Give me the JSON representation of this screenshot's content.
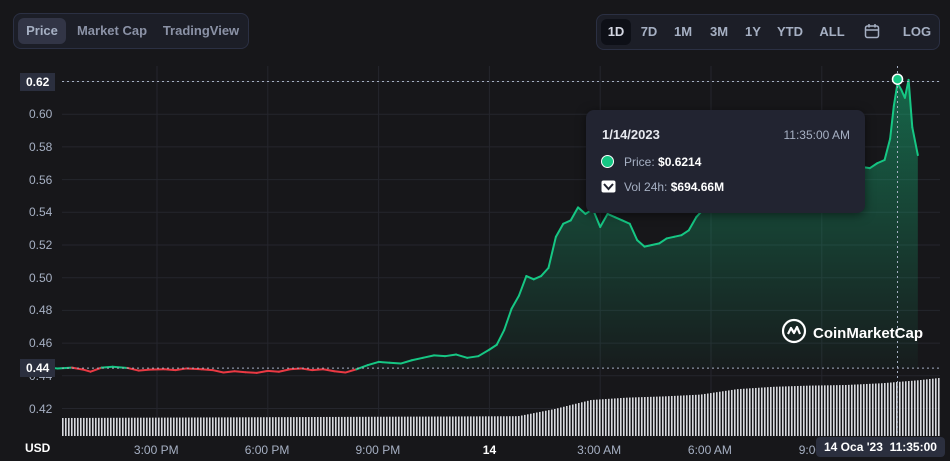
{
  "tabs": [
    {
      "label": "Price",
      "active": true
    },
    {
      "label": "Market Cap",
      "active": false
    },
    {
      "label": "TradingView",
      "active": false
    }
  ],
  "ranges": [
    {
      "label": "1D",
      "active": true
    },
    {
      "label": "7D"
    },
    {
      "label": "1M"
    },
    {
      "label": "3M"
    },
    {
      "label": "1Y"
    },
    {
      "label": "YTD"
    },
    {
      "label": "ALL"
    }
  ],
  "calendar_icon": "calendar-icon",
  "log_label": "LOG",
  "tooltip": {
    "date": "1/14/2023",
    "time": "11:35:00 AM",
    "price_label": "Price:",
    "price_value": "$0.6214",
    "vol_label": "Vol 24h:",
    "vol_value": "$694.66M"
  },
  "watermark": "CoinMarketCap",
  "currency_label": "USD",
  "crosshair_date": "14 Oca '23",
  "crosshair_time": "11:35:00",
  "colors": {
    "up": "#16c784",
    "down": "#ea3943",
    "background": "#17171a"
  },
  "chart_data": {
    "type": "area",
    "ylabel": "USD",
    "ylim": [
      0.405,
      0.635
    ],
    "y_ticks": [
      "0.42",
      "0.44",
      "0.46",
      "0.48",
      "0.50",
      "0.52",
      "0.54",
      "0.56",
      "0.58",
      "0.60",
      "0.62"
    ],
    "x_ticks": [
      "3:00 PM",
      "6:00 PM",
      "9:00 PM",
      "14",
      "3:00 AM",
      "6:00 AM",
      "9:00 AM"
    ],
    "x_range_hours": [
      11.5,
      35.6
    ],
    "hover_price_label": "0.62",
    "open_price_label": "0.44",
    "baseline_price": 0.4447,
    "price_series": [
      [
        11.5,
        0.4445
      ],
      [
        12.0,
        0.4452
      ],
      [
        12.3,
        0.4445
      ],
      [
        12.7,
        0.445
      ],
      [
        13.0,
        0.4438
      ],
      [
        13.2,
        0.4425
      ],
      [
        13.5,
        0.445
      ],
      [
        13.8,
        0.4455
      ],
      [
        14.2,
        0.4448
      ],
      [
        14.5,
        0.4432
      ],
      [
        14.8,
        0.4438
      ],
      [
        15.2,
        0.444
      ],
      [
        15.5,
        0.4435
      ],
      [
        15.8,
        0.4445
      ],
      [
        16.2,
        0.444
      ],
      [
        16.5,
        0.4435
      ],
      [
        16.8,
        0.442
      ],
      [
        17.1,
        0.4428
      ],
      [
        17.4,
        0.4422
      ],
      [
        17.7,
        0.4418
      ],
      [
        18.0,
        0.443
      ],
      [
        18.3,
        0.4425
      ],
      [
        18.6,
        0.444
      ],
      [
        18.9,
        0.4445
      ],
      [
        19.2,
        0.4435
      ],
      [
        19.5,
        0.444
      ],
      [
        19.8,
        0.4428
      ],
      [
        20.1,
        0.442
      ],
      [
        20.4,
        0.444
      ],
      [
        20.7,
        0.4465
      ],
      [
        21.0,
        0.4485
      ],
      [
        21.3,
        0.448
      ],
      [
        21.6,
        0.4475
      ],
      [
        21.9,
        0.4495
      ],
      [
        22.2,
        0.451
      ],
      [
        22.5,
        0.4525
      ],
      [
        22.8,
        0.452
      ],
      [
        23.1,
        0.453
      ],
      [
        23.4,
        0.451
      ],
      [
        23.7,
        0.452
      ],
      [
        24.0,
        0.456
      ],
      [
        24.2,
        0.459
      ],
      [
        24.4,
        0.468
      ],
      [
        24.6,
        0.481
      ],
      [
        24.8,
        0.489
      ],
      [
        25.0,
        0.501
      ],
      [
        25.2,
        0.499
      ],
      [
        25.4,
        0.501
      ],
      [
        25.6,
        0.506
      ],
      [
        25.8,
        0.525
      ],
      [
        26.0,
        0.533
      ],
      [
        26.2,
        0.535
      ],
      [
        26.4,
        0.543
      ],
      [
        26.6,
        0.539
      ],
      [
        26.8,
        0.542
      ],
      [
        27.0,
        0.531
      ],
      [
        27.2,
        0.539
      ],
      [
        27.4,
        0.537
      ],
      [
        27.6,
        0.535
      ],
      [
        27.8,
        0.533
      ],
      [
        28.0,
        0.523
      ],
      [
        28.2,
        0.519
      ],
      [
        28.4,
        0.52
      ],
      [
        28.6,
        0.521
      ],
      [
        28.8,
        0.524
      ],
      [
        29.0,
        0.525
      ],
      [
        29.2,
        0.526
      ],
      [
        29.4,
        0.529
      ],
      [
        29.6,
        0.537
      ],
      [
        29.8,
        0.542
      ],
      [
        30.0,
        0.548
      ],
      [
        30.5,
        0.552
      ],
      [
        31.0,
        0.556
      ],
      [
        31.5,
        0.558
      ],
      [
        32.0,
        0.56
      ],
      [
        32.5,
        0.562
      ],
      [
        33.0,
        0.564
      ],
      [
        33.5,
        0.566
      ],
      [
        34.0,
        0.568
      ],
      [
        34.3,
        0.567
      ],
      [
        34.5,
        0.57
      ],
      [
        34.7,
        0.572
      ],
      [
        34.85,
        0.585
      ],
      [
        34.95,
        0.605
      ],
      [
        35.05,
        0.619
      ],
      [
        35.15,
        0.615
      ],
      [
        35.25,
        0.61
      ],
      [
        35.35,
        0.621
      ],
      [
        35.45,
        0.592
      ],
      [
        35.6,
        0.575
      ]
    ],
    "hover_point": [
      35.05,
      0.6214
    ],
    "volume_relative": [
      [
        11.5,
        0.3
      ],
      [
        24.0,
        0.33
      ],
      [
        25.0,
        0.45
      ],
      [
        26.0,
        0.6
      ],
      [
        27.0,
        0.64
      ],
      [
        28.0,
        0.66
      ],
      [
        29.0,
        0.69
      ],
      [
        30.0,
        0.78
      ],
      [
        31.0,
        0.82
      ],
      [
        32.0,
        0.84
      ],
      [
        33.0,
        0.85
      ],
      [
        34.0,
        0.88
      ],
      [
        35.0,
        0.93
      ],
      [
        35.6,
        0.97
      ]
    ]
  }
}
